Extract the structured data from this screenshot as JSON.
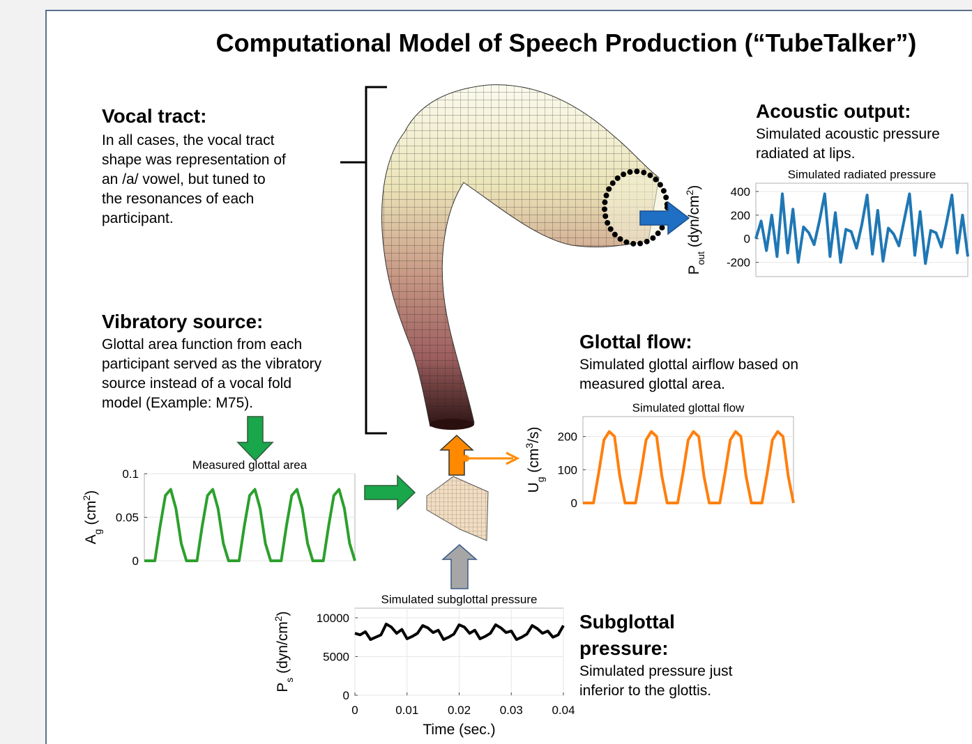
{
  "title": "Computational Model of Speech Production (“TubeTalker”)",
  "sections": {
    "vocal_tract": {
      "heading": [
        "Vocal tract:"
      ],
      "lines": [
        "In all cases, the vocal tract",
        "shape was representation of",
        "an /a/ vowel, but tuned to",
        "the resonances of each",
        "participant."
      ]
    },
    "acoustic_output": {
      "heading": [
        "Acoustic output:"
      ],
      "lines": [
        "Simulated acoustic pressure",
        "radiated at lips."
      ]
    },
    "vibratory_source": {
      "heading": [
        "Vibratory source:"
      ],
      "lines": [
        "Glottal area function from each",
        "participant served as the vibratory",
        "source instead of a vocal fold",
        "model (Example: M75)."
      ]
    },
    "glottal_flow": {
      "heading": [
        "Glottal flow:"
      ],
      "lines": [
        "Simulated glottal airflow based on",
        "measured glottal area."
      ]
    },
    "subglottal_pressure": {
      "heading": [
        "Subglottal",
        "pressure:"
      ],
      "lines": [
        "Simulated pressure just",
        "inferior to the glottis."
      ]
    }
  },
  "chart_data": [
    {
      "type": "line",
      "title": "Measured glottal area",
      "color": "#2ca02c",
      "ylabel": [
        {
          "text": "A"
        },
        {
          "text": "g",
          "shift": "sub"
        },
        {
          "text": " (cm"
        },
        {
          "text": "2",
          "shift": "super"
        },
        {
          "text": ")"
        }
      ],
      "xlim": [
        0,
        0.04
      ],
      "ylim": [
        0,
        0.1
      ],
      "yticks": [
        0,
        0.05,
        0.1
      ],
      "grid": true,
      "x": [
        0,
        0.001,
        0.002,
        0.003,
        0.004,
        0.005,
        0.006,
        0.007,
        0.008,
        0.009,
        0.01,
        0.011,
        0.012,
        0.013,
        0.014,
        0.015,
        0.016,
        0.017,
        0.018,
        0.019,
        0.02,
        0.021,
        0.022,
        0.023,
        0.024,
        0.025,
        0.026,
        0.027,
        0.028,
        0.029,
        0.03,
        0.031,
        0.032,
        0.033,
        0.034,
        0.035,
        0.036,
        0.037,
        0.038,
        0.039,
        0.04
      ],
      "values": [
        0,
        0,
        0,
        0.04,
        0.075,
        0.082,
        0.06,
        0.02,
        0,
        0,
        0,
        0.04,
        0.075,
        0.082,
        0.06,
        0.02,
        0,
        0,
        0,
        0.04,
        0.075,
        0.082,
        0.06,
        0.02,
        0,
        0,
        0,
        0.04,
        0.075,
        0.082,
        0.06,
        0.02,
        0,
        0,
        0,
        0.04,
        0.075,
        0.082,
        0.06,
        0.02,
        0
      ]
    },
    {
      "type": "line",
      "title": "Simulated glottal flow",
      "color": "#ff7f0e",
      "ylabel": [
        {
          "text": "U"
        },
        {
          "text": "g",
          "shift": "sub"
        },
        {
          "text": " (cm"
        },
        {
          "text": "3",
          "shift": "super"
        },
        {
          "text": "/s)"
        }
      ],
      "xlim": [
        0,
        0.04
      ],
      "ylim": [
        0,
        260
      ],
      "yticks": [
        0,
        100,
        200
      ],
      "grid": true,
      "x": [
        0,
        0.001,
        0.002,
        0.003,
        0.004,
        0.005,
        0.006,
        0.007,
        0.008,
        0.009,
        0.01,
        0.011,
        0.012,
        0.013,
        0.014,
        0.015,
        0.016,
        0.017,
        0.018,
        0.019,
        0.02,
        0.021,
        0.022,
        0.023,
        0.024,
        0.025,
        0.026,
        0.027,
        0.028,
        0.029,
        0.03,
        0.031,
        0.032,
        0.033,
        0.034,
        0.035,
        0.036,
        0.037,
        0.038,
        0.039,
        0.04
      ],
      "values": [
        0,
        0,
        0,
        90,
        190,
        215,
        200,
        80,
        0,
        0,
        0,
        90,
        190,
        215,
        200,
        80,
        0,
        0,
        0,
        90,
        190,
        215,
        200,
        80,
        0,
        0,
        0,
        90,
        190,
        215,
        200,
        80,
        0,
        0,
        0,
        90,
        190,
        215,
        200,
        80,
        0
      ]
    },
    {
      "type": "line",
      "title": "Simulated radiated pressure",
      "color": "#1f77b4",
      "ylabel": [
        {
          "text": "P"
        },
        {
          "text": "out",
          "shift": "sub"
        },
        {
          "text": " (dyn/cm"
        },
        {
          "text": "2",
          "shift": "super"
        },
        {
          "text": ")"
        }
      ],
      "xlim": [
        0,
        0.04
      ],
      "ylim": [
        -320,
        470
      ],
      "yticks": [
        -200,
        0,
        200,
        400
      ],
      "grid": true,
      "x": [
        0,
        0.001,
        0.002,
        0.003,
        0.004,
        0.005,
        0.006,
        0.007,
        0.008,
        0.009,
        0.01,
        0.011,
        0.012,
        0.013,
        0.014,
        0.015,
        0.016,
        0.017,
        0.018,
        0.019,
        0.02,
        0.021,
        0.022,
        0.023,
        0.024,
        0.025,
        0.026,
        0.027,
        0.028,
        0.029,
        0.03,
        0.031,
        0.032,
        0.033,
        0.034,
        0.035,
        0.036,
        0.037,
        0.038,
        0.039,
        0.04
      ],
      "values": [
        0,
        150,
        -100,
        200,
        -150,
        380,
        -120,
        250,
        -200,
        100,
        50,
        -50,
        150,
        380,
        -150,
        220,
        -200,
        80,
        60,
        -80,
        120,
        370,
        -130,
        240,
        -190,
        90,
        40,
        -60,
        160,
        380,
        -140,
        230,
        -210,
        70,
        50,
        -70,
        140,
        370,
        -120,
        200,
        -150
      ]
    },
    {
      "type": "line",
      "title": "Simulated subglottal pressure",
      "color": "#000000",
      "ylabel": [
        {
          "text": "P"
        },
        {
          "text": "s",
          "shift": "sub"
        },
        {
          "text": " (dyn/cm"
        },
        {
          "text": "2",
          "shift": "super"
        },
        {
          "text": ")"
        }
      ],
      "xlabel": "Time (sec.)",
      "xlim": [
        0,
        0.04
      ],
      "xticks": [
        0,
        0.01,
        0.02,
        0.03,
        0.04
      ],
      "ylim": [
        0,
        11250
      ],
      "yticks": [
        0,
        5000,
        10000
      ],
      "grid": true,
      "x": [
        0,
        0.001,
        0.002,
        0.003,
        0.004,
        0.005,
        0.006,
        0.007,
        0.008,
        0.009,
        0.01,
        0.011,
        0.012,
        0.013,
        0.014,
        0.015,
        0.016,
        0.017,
        0.018,
        0.019,
        0.02,
        0.021,
        0.022,
        0.023,
        0.024,
        0.025,
        0.026,
        0.027,
        0.028,
        0.029,
        0.03,
        0.031,
        0.032,
        0.033,
        0.034,
        0.035,
        0.036,
        0.037,
        0.038,
        0.039,
        0.04
      ],
      "values": [
        8000,
        7800,
        8200,
        7200,
        7500,
        7800,
        9200,
        8800,
        8000,
        8500,
        7300,
        7600,
        8000,
        9000,
        8700,
        8100,
        8400,
        7200,
        7500,
        7900,
        9100,
        8800,
        8000,
        8400,
        7300,
        7600,
        8000,
        9100,
        8700,
        8100,
        8300,
        7200,
        7500,
        7900,
        9000,
        8600,
        8000,
        8300,
        7500,
        7800,
        9000
      ]
    }
  ]
}
